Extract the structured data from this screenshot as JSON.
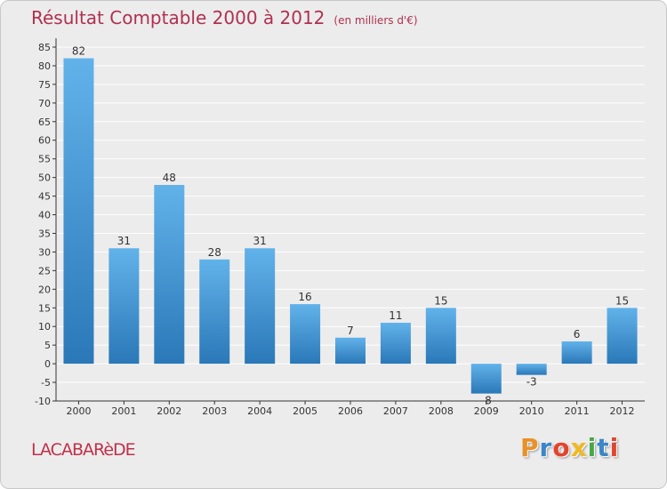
{
  "title": "Résultat Comptable 2000 à 2012",
  "subtitle": "(en milliers d'€)",
  "commune": "LACABARèDE",
  "brand": {
    "letters": [
      {
        "ch": "P",
        "color": "#e8912a"
      },
      {
        "ch": "r",
        "color": "#3a86c8"
      },
      {
        "ch": "o",
        "color": "#e2452f"
      },
      {
        "ch": "x",
        "color": "#f0b824"
      },
      {
        "ch": "i",
        "color": "#45a848"
      },
      {
        "ch": "t",
        "color": "#3a86c8"
      },
      {
        "ch": "i",
        "color": "#e2452f"
      }
    ]
  },
  "colors": {
    "bar_light": "#62b2ea",
    "bar_dark": "#2a78b8",
    "axis": "#333333",
    "grid": "#ffffff"
  },
  "chart_data": {
    "type": "bar",
    "title": "Résultat Comptable 2000 à 2012",
    "xlabel": "",
    "ylabel": "",
    "categories": [
      "2000",
      "2001",
      "2002",
      "2003",
      "2004",
      "2005",
      "2006",
      "2007",
      "2008",
      "2009",
      "2010",
      "2011",
      "2012"
    ],
    "values": [
      82,
      31,
      48,
      28,
      31,
      16,
      7,
      11,
      15,
      -8,
      -3,
      6,
      15
    ],
    "ylim": [
      -10,
      85
    ],
    "yticks": [
      -10,
      -5,
      0,
      5,
      10,
      15,
      20,
      25,
      30,
      35,
      40,
      45,
      50,
      55,
      60,
      65,
      70,
      75,
      80,
      85
    ],
    "grid": true
  }
}
